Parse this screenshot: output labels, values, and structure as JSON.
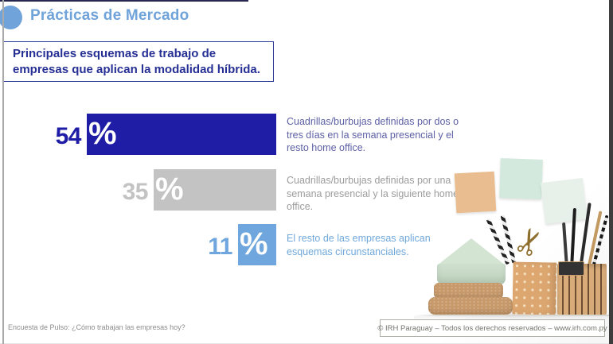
{
  "header": {
    "title": "Prácticas de Mercado"
  },
  "subtitle_box": {
    "text": "Principales esquemas de trabajo de empresas que aplican la modalidad híbrida."
  },
  "chart_data": {
    "type": "bar",
    "orientation": "horizontal",
    "title": "Principales esquemas de trabajo de empresas que aplican la modalidad híbrida.",
    "value_suffix": "%",
    "xlim": [
      0,
      80
    ],
    "grid": false,
    "series": [
      {
        "value": 54,
        "label": "54",
        "description": "Cuadrillas/burbujas definidas por dos o tres días en la semana presencial y el resto home office.",
        "color": "#1f1da5",
        "text_color": "#5d60a5"
      },
      {
        "value": 35,
        "label": "35",
        "description": "Cuadrillas/burbujas definidas por una semana presencial y la siguiente home office.",
        "color": "#c3c3c3",
        "text_color": "#9c9c9c"
      },
      {
        "value": 11,
        "label": "11",
        "description": "El resto de las empresas aplican esquemas circunstanciales.",
        "color": "#6ea6dd",
        "text_color": "#6fa8dc"
      }
    ]
  },
  "footer": {
    "left": "Encuesta de Pulso: ¿Cómo trabajan las empresas hoy?",
    "right": "© IRH Paraguay – Todos los derechos reservados – www.irh.com.py"
  },
  "colors": {
    "accent_light_blue": "#6fa3d9",
    "accent_dark_blue": "#1f1da5",
    "subtitle_navy": "#252f94",
    "bar_gray": "#c3c3c3"
  }
}
